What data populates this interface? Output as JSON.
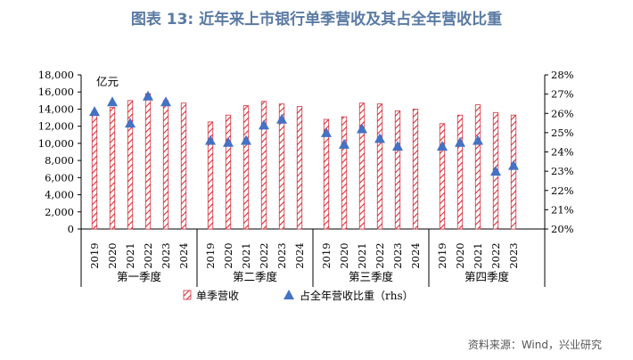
{
  "title": "图表 13: 近年来上市银行单季营收及其占全年营收比重",
  "source": "资料来源：Wind，兴业研究",
  "colors": {
    "title": "#5a7aa3",
    "bar_stroke": "#d32f3a",
    "bar_fill": "#ffffff",
    "marker": "#4472c4",
    "axis": "#000000"
  },
  "chart_data": {
    "type": "bar",
    "left_axis_unit": "亿元",
    "ylim": [
      0,
      18000
    ],
    "y_ticks": [
      "0",
      "2,000",
      "4,000",
      "6,000",
      "8,000",
      "10,000",
      "12,000",
      "14,000",
      "16,000",
      "18,000"
    ],
    "y2lim": [
      0.2,
      0.28
    ],
    "y2_ticks": [
      "20%",
      "21%",
      "22%",
      "23%",
      "24%",
      "25%",
      "26%",
      "27%",
      "28%"
    ],
    "groups": [
      {
        "name": "第一季度",
        "years": [
          "2019",
          "2020",
          "2021",
          "2022",
          "2023",
          "2024"
        ],
        "revenue": [
          13700,
          14200,
          15000,
          15800,
          15000,
          14700
        ],
        "share": [
          0.261,
          0.266,
          0.255,
          0.269,
          0.266,
          null
        ]
      },
      {
        "name": "第二季度",
        "years": [
          "2019",
          "2020",
          "2021",
          "2022",
          "2023",
          "2024"
        ],
        "revenue": [
          12500,
          13300,
          14400,
          14900,
          14600,
          14300
        ],
        "share": [
          0.246,
          0.245,
          0.246,
          0.254,
          0.257,
          null
        ]
      },
      {
        "name": "第三季度",
        "years": [
          "2019",
          "2020",
          "2021",
          "2022",
          "2023",
          "2024"
        ],
        "revenue": [
          12800,
          13100,
          14700,
          14600,
          13800,
          14000
        ],
        "share": [
          0.25,
          0.244,
          0.252,
          0.247,
          0.243,
          null
        ]
      },
      {
        "name": "第四季度",
        "years": [
          "2019",
          "2020",
          "2021",
          "2022",
          "2023"
        ],
        "revenue": [
          12300,
          13300,
          14500,
          13600,
          13300
        ],
        "share": [
          0.243,
          0.245,
          0.246,
          0.23,
          0.233
        ]
      }
    ],
    "series": [
      {
        "name": "单季营收",
        "key": "revenue",
        "axis": "left"
      },
      {
        "name": "占全年营收比重（rhs）",
        "key": "share",
        "axis": "right"
      }
    ],
    "legend_position": "bottom"
  }
}
